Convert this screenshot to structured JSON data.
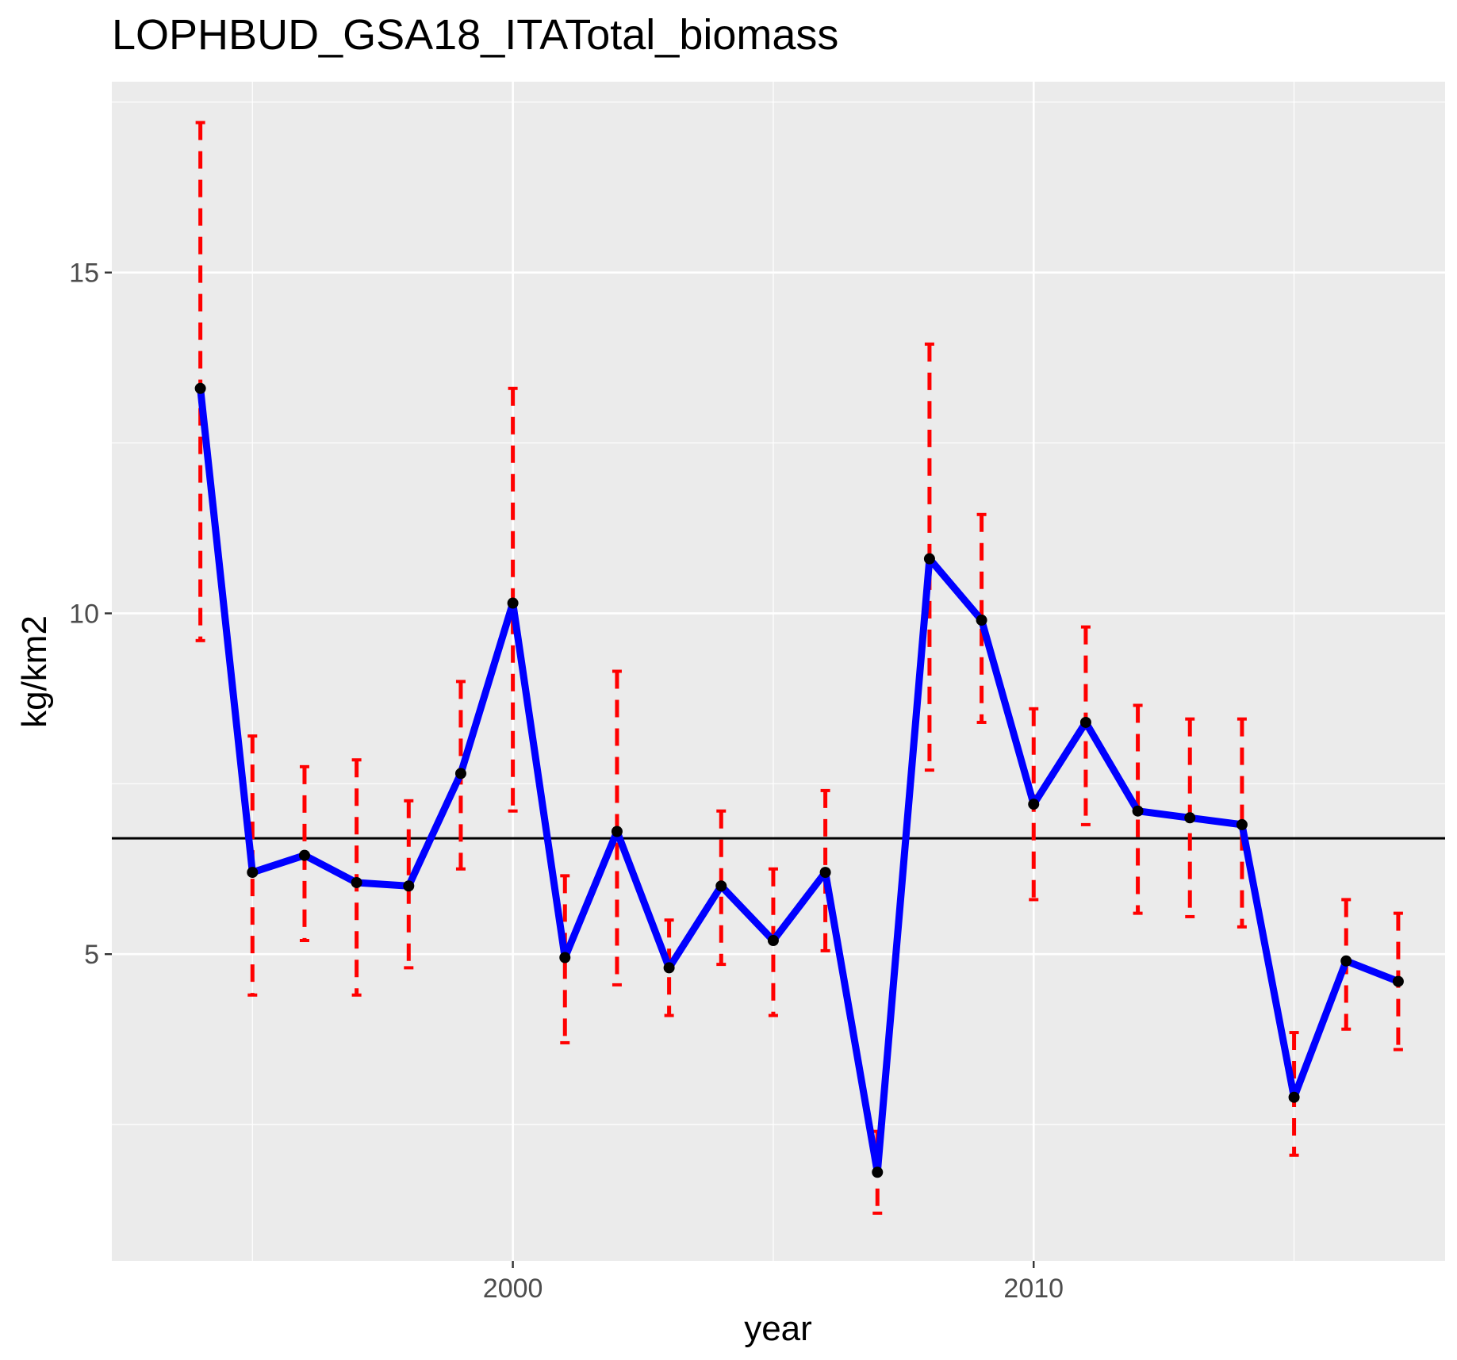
{
  "chart_data": {
    "type": "line",
    "title": "LOPHBUD_GSA18_ITATotal_biomass",
    "xlabel": "year",
    "ylabel": "kg/km2",
    "xlim": [
      1992.3,
      2017.9
    ],
    "ylim": [
      0.5,
      17.8
    ],
    "x_ticks": [
      2000,
      2010
    ],
    "y_ticks": [
      5,
      10,
      15
    ],
    "grid": true,
    "reference_line": 6.7,
    "series": [
      {
        "line_color": "#0000ff",
        "point_color": "#000000",
        "error_color": "#ff0000",
        "points": [
          {
            "x": 1994,
            "y": 13.3,
            "lower": 9.6,
            "upper": 17.2
          },
          {
            "x": 1995,
            "y": 6.2,
            "lower": 4.4,
            "upper": 8.2
          },
          {
            "x": 1996,
            "y": 6.45,
            "lower": 5.2,
            "upper": 7.75
          },
          {
            "x": 1997,
            "y": 6.05,
            "lower": 4.4,
            "upper": 7.85
          },
          {
            "x": 1998,
            "y": 6.0,
            "lower": 4.8,
            "upper": 7.25
          },
          {
            "x": 1999,
            "y": 7.65,
            "lower": 6.25,
            "upper": 9.0
          },
          {
            "x": 2000,
            "y": 10.15,
            "lower": 7.1,
            "upper": 13.3
          },
          {
            "x": 2001,
            "y": 4.95,
            "lower": 3.7,
            "upper": 6.15
          },
          {
            "x": 2002,
            "y": 6.8,
            "lower": 4.55,
            "upper": 9.15
          },
          {
            "x": 2003,
            "y": 4.8,
            "lower": 4.1,
            "upper": 5.5
          },
          {
            "x": 2004,
            "y": 6.0,
            "lower": 4.85,
            "upper": 7.1
          },
          {
            "x": 2005,
            "y": 5.2,
            "lower": 4.1,
            "upper": 6.25
          },
          {
            "x": 2006,
            "y": 6.2,
            "lower": 5.05,
            "upper": 7.4
          },
          {
            "x": 2007,
            "y": 1.8,
            "lower": 1.2,
            "upper": 2.4
          },
          {
            "x": 2008,
            "y": 10.8,
            "lower": 7.7,
            "upper": 13.95
          },
          {
            "x": 2009,
            "y": 9.9,
            "lower": 8.4,
            "upper": 11.45
          },
          {
            "x": 2010,
            "y": 7.2,
            "lower": 5.8,
            "upper": 8.6
          },
          {
            "x": 2011,
            "y": 8.4,
            "lower": 6.9,
            "upper": 9.8
          },
          {
            "x": 2012,
            "y": 7.1,
            "lower": 5.6,
            "upper": 8.65
          },
          {
            "x": 2013,
            "y": 7.0,
            "lower": 5.55,
            "upper": 8.45
          },
          {
            "x": 2014,
            "y": 6.9,
            "lower": 5.4,
            "upper": 8.45
          },
          {
            "x": 2015,
            "y": 2.9,
            "lower": 2.05,
            "upper": 3.85
          },
          {
            "x": 2016,
            "y": 4.9,
            "lower": 3.9,
            "upper": 5.8
          },
          {
            "x": 2017,
            "y": 4.6,
            "lower": 3.6,
            "upper": 5.6
          }
        ]
      }
    ]
  }
}
